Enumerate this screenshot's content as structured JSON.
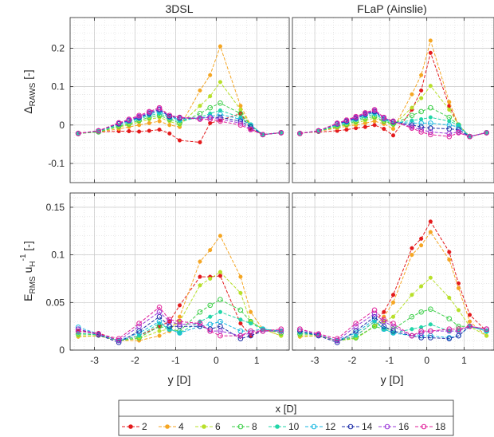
{
  "figure": {
    "legend": {
      "title": "x [D]",
      "entries": [
        "2",
        "4",
        "6",
        "8",
        "10",
        "12",
        "14",
        "16",
        "18"
      ],
      "placement": "bottom-center"
    }
  },
  "series_style": [
    {
      "name": "2",
      "color": "#e41a1c",
      "marker": "dot"
    },
    {
      "name": "4",
      "color": "#f5a623",
      "marker": "dot"
    },
    {
      "name": "6",
      "color": "#b8e02a",
      "marker": "dot"
    },
    {
      "name": "8",
      "color": "#3ecf4a",
      "marker": "circle"
    },
    {
      "name": "10",
      "color": "#22d6a8",
      "marker": "dot"
    },
    {
      "name": "12",
      "color": "#16b7e0",
      "marker": "circle"
    },
    {
      "name": "14",
      "color": "#1e2ea8",
      "marker": "circle"
    },
    {
      "name": "16",
      "color": "#9b3ad9",
      "marker": "circle"
    },
    {
      "name": "18",
      "color": "#e0209a",
      "marker": "circle"
    }
  ],
  "chart_data": [
    {
      "type": "line",
      "title": "3DSL",
      "xlabel": "",
      "ylabel": "Δ RAWS [-]",
      "xlim": [
        -3.6,
        1.8
      ],
      "ylim": [
        -0.15,
        0.28
      ],
      "xticks": [
        -3,
        -2,
        -1,
        0,
        1
      ],
      "xtick_labels": [
        "",
        "",
        "",
        "",
        ""
      ],
      "yticks": [
        -0.1,
        0,
        0.1,
        0.2
      ],
      "ytick_labels": [
        "-0.1",
        "0",
        "0.1",
        "0.2"
      ],
      "grid": true,
      "x": [
        -3.4,
        -2.9,
        -2.4,
        -2.15,
        -1.9,
        -1.65,
        -1.4,
        -1.15,
        -0.9,
        -0.4,
        -0.15,
        0.1,
        0.6,
        0.85,
        1.15,
        1.6
      ],
      "series": [
        {
          "name": "2",
          "values": [
            -0.02,
            -0.018,
            -0.016,
            -0.016,
            -0.017,
            -0.015,
            -0.012,
            -0.022,
            -0.04,
            -0.045,
            0.005,
            0.012,
            0.03,
            -0.01,
            -0.025,
            -0.02
          ]
        },
        {
          "name": "4",
          "values": [
            -0.022,
            -0.018,
            -0.01,
            -0.005,
            0.0,
            0.005,
            0.01,
            0.0,
            -0.005,
            0.09,
            0.13,
            0.205,
            0.05,
            0.0,
            -0.025,
            -0.02
          ]
        },
        {
          "name": "6",
          "values": [
            -0.022,
            -0.018,
            -0.005,
            0.0,
            0.008,
            0.015,
            0.02,
            0.01,
            0.0,
            0.05,
            0.075,
            0.112,
            0.04,
            0.0,
            -0.025,
            -0.02
          ]
        },
        {
          "name": "8",
          "values": [
            -0.022,
            -0.018,
            -0.003,
            0.003,
            0.012,
            0.02,
            0.025,
            0.015,
            0.005,
            0.03,
            0.045,
            0.057,
            0.03,
            0.0,
            -0.025,
            -0.02
          ]
        },
        {
          "name": "10",
          "values": [
            -0.022,
            -0.016,
            0.0,
            0.008,
            0.015,
            0.025,
            0.03,
            0.018,
            0.01,
            0.02,
            0.03,
            0.038,
            0.02,
            0.0,
            -0.025,
            -0.02
          ]
        },
        {
          "name": "12",
          "values": [
            -0.022,
            -0.015,
            0.003,
            0.01,
            0.018,
            0.028,
            0.035,
            0.02,
            0.015,
            0.018,
            0.022,
            0.028,
            0.015,
            0.0,
            -0.025,
            -0.02
          ]
        },
        {
          "name": "14",
          "values": [
            -0.022,
            -0.015,
            0.003,
            0.012,
            0.02,
            0.03,
            0.04,
            0.022,
            0.018,
            0.018,
            0.02,
            0.02,
            0.01,
            -0.005,
            -0.025,
            -0.02
          ]
        },
        {
          "name": "16",
          "values": [
            -0.022,
            -0.015,
            0.005,
            0.013,
            0.022,
            0.033,
            0.042,
            0.025,
            0.02,
            0.018,
            0.02,
            0.015,
            0.005,
            -0.01,
            -0.025,
            -0.02
          ]
        },
        {
          "name": "18",
          "values": [
            -0.022,
            -0.015,
            0.006,
            0.015,
            0.025,
            0.035,
            0.045,
            0.025,
            0.02,
            0.015,
            0.015,
            0.01,
            0.0,
            -0.012,
            -0.025,
            -0.02
          ]
        }
      ]
    },
    {
      "type": "line",
      "title": "FLaP (Ainslie)",
      "xlabel": "",
      "ylabel": "",
      "xlim": [
        -3.6,
        1.8
      ],
      "ylim": [
        -0.15,
        0.28
      ],
      "xticks": [
        -3,
        -2,
        -1,
        0,
        1
      ],
      "xtick_labels": [
        "",
        "",
        "",
        "",
        ""
      ],
      "yticks": [
        -0.1,
        0,
        0.1,
        0.2
      ],
      "ytick_labels": [
        "",
        "",
        "",
        ""
      ],
      "grid": true,
      "x": [
        -3.4,
        -2.9,
        -2.4,
        -2.15,
        -1.9,
        -1.65,
        -1.4,
        -1.15,
        -0.9,
        -0.4,
        -0.15,
        0.1,
        0.6,
        0.85,
        1.15,
        1.6
      ],
      "series": [
        {
          "name": "2",
          "values": [
            -0.02,
            -0.018,
            -0.015,
            -0.012,
            -0.008,
            -0.005,
            0.0,
            -0.01,
            -0.027,
            0.04,
            0.09,
            0.188,
            0.05,
            0.0,
            -0.03,
            -0.02
          ]
        },
        {
          "name": "4",
          "values": [
            -0.022,
            -0.016,
            -0.008,
            -0.003,
            0.0,
            0.005,
            0.01,
            0.003,
            -0.01,
            0.08,
            0.13,
            0.22,
            0.06,
            0.0,
            -0.03,
            -0.02
          ]
        },
        {
          "name": "6",
          "values": [
            -0.022,
            -0.016,
            -0.005,
            0.0,
            0.005,
            0.012,
            0.018,
            0.008,
            0.0,
            0.045,
            0.07,
            0.102,
            0.04,
            0.0,
            -0.03,
            -0.02
          ]
        },
        {
          "name": "8",
          "values": [
            -0.022,
            -0.016,
            -0.003,
            0.002,
            0.01,
            0.018,
            0.022,
            0.01,
            0.003,
            0.025,
            0.035,
            0.045,
            0.02,
            0.0,
            -0.03,
            -0.02
          ]
        },
        {
          "name": "10",
          "values": [
            -0.022,
            -0.016,
            0.0,
            0.005,
            0.013,
            0.022,
            0.028,
            0.014,
            0.005,
            0.012,
            0.015,
            0.02,
            0.01,
            0.0,
            -0.03,
            -0.02
          ]
        },
        {
          "name": "12",
          "values": [
            -0.022,
            -0.015,
            0.002,
            0.008,
            0.016,
            0.026,
            0.032,
            0.016,
            0.008,
            0.005,
            0.005,
            0.005,
            0.0,
            -0.005,
            -0.03,
            -0.02
          ]
        },
        {
          "name": "14",
          "values": [
            -0.022,
            -0.015,
            0.003,
            0.01,
            0.018,
            0.028,
            0.035,
            0.018,
            0.008,
            0.0,
            -0.005,
            -0.008,
            -0.01,
            -0.012,
            -0.03,
            -0.02
          ]
        },
        {
          "name": "16",
          "values": [
            -0.022,
            -0.015,
            0.004,
            0.012,
            0.02,
            0.03,
            0.038,
            0.018,
            0.01,
            -0.005,
            -0.012,
            -0.018,
            -0.022,
            -0.018,
            -0.03,
            -0.02
          ]
        },
        {
          "name": "18",
          "values": [
            -0.022,
            -0.015,
            0.005,
            0.013,
            0.022,
            0.032,
            0.04,
            0.02,
            0.01,
            -0.008,
            -0.018,
            -0.025,
            -0.03,
            -0.02,
            -0.03,
            -0.02
          ]
        }
      ]
    },
    {
      "type": "line",
      "title": "",
      "xlabel": "y [D]",
      "ylabel": "E RMS u H -1 [-]",
      "xlim": [
        -3.6,
        1.8
      ],
      "ylim": [
        0,
        0.165
      ],
      "xticks": [
        -3,
        -2,
        -1,
        0,
        1
      ],
      "xtick_labels": [
        "-3",
        "-2",
        "-1",
        "0",
        "1"
      ],
      "yticks": [
        0,
        0.05,
        0.1,
        0.15
      ],
      "ytick_labels": [
        "0",
        "0.05",
        "0.1",
        "0.15"
      ],
      "grid": true,
      "x": [
        -3.4,
        -2.9,
        -2.4,
        -1.9,
        -1.4,
        -1.15,
        -0.9,
        -0.4,
        -0.15,
        0.1,
        0.6,
        0.85,
        1.15,
        1.6
      ],
      "series": [
        {
          "name": "2",
          "values": [
            0.02,
            0.018,
            0.01,
            0.015,
            0.025,
            0.03,
            0.047,
            0.077,
            0.077,
            0.078,
            0.028,
            0.015,
            0.022,
            0.02
          ]
        },
        {
          "name": "4",
          "values": [
            0.014,
            0.015,
            0.01,
            0.01,
            0.015,
            0.02,
            0.035,
            0.093,
            0.105,
            0.12,
            0.077,
            0.04,
            0.022,
            0.015
          ]
        },
        {
          "name": "6",
          "values": [
            0.015,
            0.015,
            0.01,
            0.012,
            0.02,
            0.022,
            0.03,
            0.068,
            0.075,
            0.082,
            0.06,
            0.03,
            0.022,
            0.015
          ]
        },
        {
          "name": "8",
          "values": [
            0.017,
            0.016,
            0.01,
            0.013,
            0.025,
            0.022,
            0.02,
            0.04,
            0.047,
            0.053,
            0.042,
            0.03,
            0.022,
            0.018
          ]
        },
        {
          "name": "10",
          "values": [
            0.018,
            0.016,
            0.01,
            0.015,
            0.028,
            0.022,
            0.018,
            0.03,
            0.035,
            0.04,
            0.032,
            0.028,
            0.022,
            0.02
          ]
        },
        {
          "name": "12",
          "values": [
            0.024,
            0.017,
            0.01,
            0.018,
            0.03,
            0.022,
            0.018,
            0.025,
            0.027,
            0.03,
            0.02,
            0.02,
            0.022,
            0.02
          ]
        },
        {
          "name": "14",
          "values": [
            0.022,
            0.016,
            0.008,
            0.02,
            0.035,
            0.025,
            0.025,
            0.025,
            0.022,
            0.025,
            0.012,
            0.015,
            0.02,
            0.02
          ]
        },
        {
          "name": "16",
          "values": [
            0.022,
            0.017,
            0.01,
            0.025,
            0.04,
            0.03,
            0.027,
            0.028,
            0.02,
            0.02,
            0.015,
            0.018,
            0.02,
            0.02
          ]
        },
        {
          "name": "18",
          "values": [
            0.02,
            0.017,
            0.012,
            0.028,
            0.045,
            0.032,
            0.03,
            0.028,
            0.02,
            0.015,
            0.015,
            0.02,
            0.02,
            0.022
          ]
        }
      ]
    },
    {
      "type": "line",
      "title": "",
      "xlabel": "y [D]",
      "ylabel": "",
      "xlim": [
        -3.6,
        1.8
      ],
      "ylim": [
        0,
        0.165
      ],
      "xticks": [
        -3,
        -2,
        -1,
        0,
        1
      ],
      "xtick_labels": [
        "-3",
        "-2",
        "-1",
        "0",
        "1"
      ],
      "yticks": [
        0,
        0.05,
        0.1,
        0.15
      ],
      "ytick_labels": [
        "",
        "",
        "",
        ""
      ],
      "grid": true,
      "x": [
        -3.4,
        -2.9,
        -2.4,
        -1.9,
        -1.4,
        -1.15,
        -0.9,
        -0.4,
        -0.15,
        0.1,
        0.6,
        0.85,
        1.15,
        1.6
      ],
      "series": [
        {
          "name": "2",
          "values": [
            0.015,
            0.015,
            0.01,
            0.015,
            0.03,
            0.04,
            0.058,
            0.107,
            0.117,
            0.135,
            0.103,
            0.07,
            0.037,
            0.02
          ]
        },
        {
          "name": "4",
          "values": [
            0.014,
            0.015,
            0.01,
            0.013,
            0.025,
            0.035,
            0.05,
            0.1,
            0.11,
            0.124,
            0.095,
            0.065,
            0.03,
            0.015
          ]
        },
        {
          "name": "6",
          "values": [
            0.015,
            0.015,
            0.01,
            0.012,
            0.025,
            0.03,
            0.035,
            0.058,
            0.067,
            0.076,
            0.055,
            0.042,
            0.025,
            0.015
          ]
        },
        {
          "name": "8",
          "values": [
            0.017,
            0.016,
            0.01,
            0.013,
            0.025,
            0.022,
            0.022,
            0.035,
            0.04,
            0.043,
            0.033,
            0.025,
            0.025,
            0.02
          ]
        },
        {
          "name": "10",
          "values": [
            0.018,
            0.016,
            0.01,
            0.015,
            0.03,
            0.022,
            0.018,
            0.022,
            0.024,
            0.027,
            0.02,
            0.02,
            0.025,
            0.02
          ]
        },
        {
          "name": "12",
          "values": [
            0.02,
            0.016,
            0.01,
            0.018,
            0.032,
            0.022,
            0.018,
            0.015,
            0.015,
            0.015,
            0.013,
            0.015,
            0.025,
            0.02
          ]
        },
        {
          "name": "14",
          "values": [
            0.02,
            0.015,
            0.008,
            0.02,
            0.035,
            0.025,
            0.02,
            0.015,
            0.013,
            0.013,
            0.012,
            0.015,
            0.025,
            0.022
          ]
        },
        {
          "name": "16",
          "values": [
            0.022,
            0.016,
            0.01,
            0.025,
            0.038,
            0.03,
            0.025,
            0.015,
            0.018,
            0.02,
            0.02,
            0.02,
            0.025,
            0.022
          ]
        },
        {
          "name": "18",
          "values": [
            0.022,
            0.017,
            0.012,
            0.028,
            0.042,
            0.032,
            0.028,
            0.015,
            0.02,
            0.02,
            0.022,
            0.022,
            0.025,
            0.022
          ]
        }
      ]
    }
  ]
}
